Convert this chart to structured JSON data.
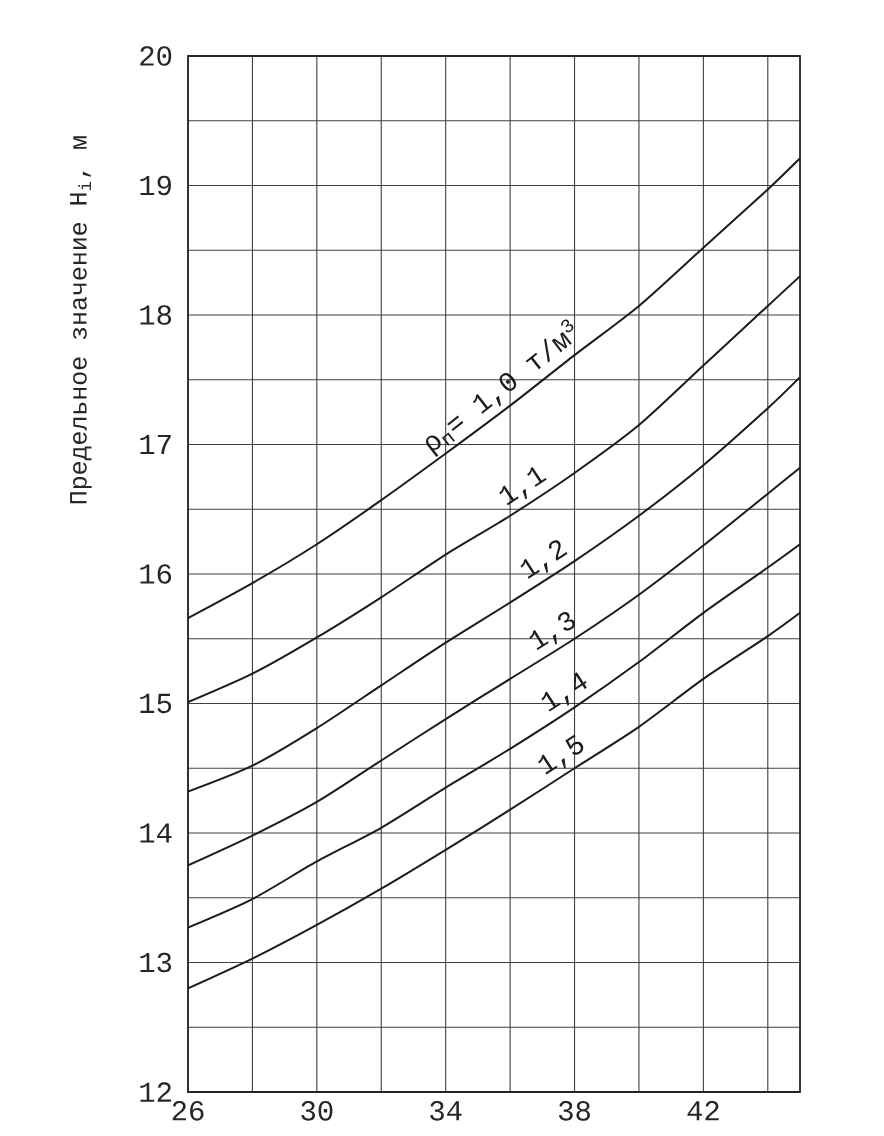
{
  "chart_data": {
    "type": "line",
    "ylabel": "Предельное значение H$_{i}$, м",
    "x": [
      26,
      28,
      30,
      32,
      34,
      36,
      38,
      40,
      42,
      44,
      45
    ],
    "series": [
      {
        "name": "ρ$_{п}$= 1,0 т/м$^{3}$",
        "color": "#1c1c1c",
        "values": [
          15.66,
          15.93,
          16.23,
          16.57,
          16.93,
          17.3,
          17.69,
          18.07,
          18.52,
          18.97,
          19.21
        ]
      },
      {
        "name": "1,1",
        "color": "#1c1c1c",
        "values": [
          15.01,
          15.23,
          15.51,
          15.82,
          16.15,
          16.45,
          16.78,
          17.15,
          17.61,
          18.07,
          18.3
        ]
      },
      {
        "name": "1,2",
        "color": "#1c1c1c",
        "values": [
          14.32,
          14.52,
          14.81,
          15.14,
          15.47,
          15.78,
          16.1,
          16.45,
          16.84,
          17.28,
          17.52
        ]
      },
      {
        "name": "1,3",
        "color": "#1c1c1c",
        "values": [
          13.75,
          13.98,
          14.24,
          14.56,
          14.88,
          15.19,
          15.5,
          15.84,
          16.22,
          16.62,
          16.82
        ]
      },
      {
        "name": "1,4",
        "color": "#1c1c1c",
        "values": [
          13.27,
          13.49,
          13.78,
          14.04,
          14.35,
          14.65,
          14.97,
          15.32,
          15.7,
          16.05,
          16.23
        ]
      },
      {
        "name": "1,5",
        "color": "#1c1c1c",
        "values": [
          12.8,
          13.03,
          13.29,
          13.57,
          13.87,
          14.18,
          14.5,
          14.82,
          15.19,
          15.52,
          15.7
        ]
      }
    ],
    "xlim": [
      26,
      45
    ],
    "ylim": [
      12,
      20
    ],
    "xticks": [
      26,
      {
        "value": 28,
        "label": null
      },
      30,
      {
        "value": 32,
        "label": null
      },
      34,
      {
        "value": 36,
        "label": null
      },
      38,
      {
        "value": 40,
        "label": null
      },
      42,
      {
        "value": 44,
        "label": null
      }
    ],
    "yticks": [
      12,
      {
        "value": 12.5,
        "label": null
      },
      13,
      {
        "value": 13.5,
        "label": null
      },
      14,
      {
        "value": 14.5,
        "label": null
      },
      15,
      {
        "value": 15.5,
        "label": null
      },
      16,
      {
        "value": 16.5,
        "label": null
      },
      17,
      {
        "value": 17.5,
        "label": null
      },
      18,
      {
        "value": 18.5,
        "label": null
      },
      19,
      {
        "value": 19.5,
        "label": null
      },
      20
    ],
    "grid": true,
    "line_style": "solid"
  }
}
